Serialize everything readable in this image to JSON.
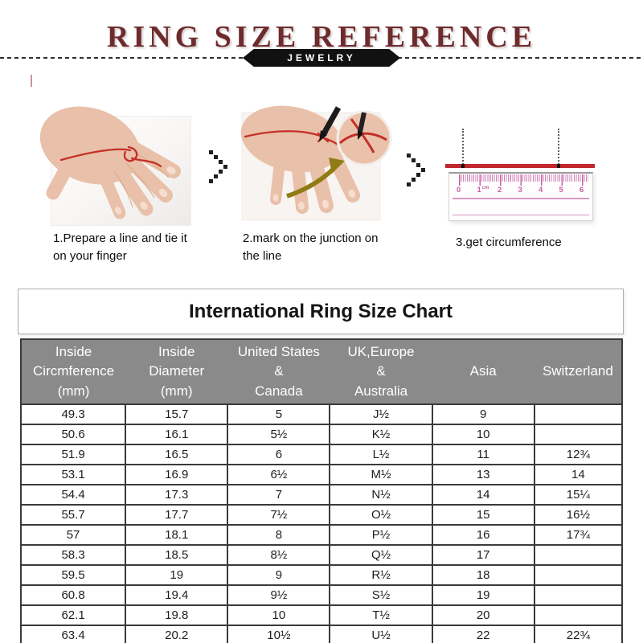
{
  "header": {
    "title": "RING SIZE REFERENCE",
    "badge": "JEWELRY"
  },
  "steps": [
    {
      "caption": "1.Prepare a line and tie it\non your finger"
    },
    {
      "caption": "2.mark on the junction on\nthe line"
    },
    {
      "caption": "3.get circumference"
    }
  ],
  "icons": {
    "step_separator": "dotted-chevron-right",
    "step1_image": "hand-with-red-string-photo",
    "step2_image": "hand-pen-marking-photo-with-magnifier",
    "step3_image": "ruler-measuring-string-photo"
  },
  "ruler": {
    "numbers": [
      "0",
      "1",
      "2",
      "3",
      "4",
      "5",
      "6"
    ],
    "unit": "cm"
  },
  "table": {
    "title": "International Ring Size Chart",
    "columns": [
      "Inside\nCircmference\n(mm)",
      "Inside\nDiameter\n(mm)",
      "United States\n&\nCanada",
      "UK,Europe\n&\nAustralia",
      "Asia",
      "Switzerland"
    ],
    "rows": [
      [
        "49.3",
        "15.7",
        "5",
        "J½",
        "9",
        ""
      ],
      [
        "50.6",
        "16.1",
        "5½",
        "K½",
        "10",
        ""
      ],
      [
        "51.9",
        "16.5",
        "6",
        "L½",
        "11",
        "12¾"
      ],
      [
        "53.1",
        "16.9",
        "6½",
        "M½",
        "13",
        "14"
      ],
      [
        "54.4",
        "17.3",
        "7",
        "N½",
        "14",
        "15¼"
      ],
      [
        "55.7",
        "17.7",
        "7½",
        "O½",
        "15",
        "16½"
      ],
      [
        "57",
        "18.1",
        "8",
        "P½",
        "16",
        "17¾"
      ],
      [
        "58.3",
        "18.5",
        "8½",
        "Q½",
        "17",
        ""
      ],
      [
        "59.5",
        "19",
        "9",
        "R½",
        "18",
        ""
      ],
      [
        "60.8",
        "19.4",
        "9½",
        "S½",
        "19",
        ""
      ],
      [
        "62.1",
        "19.8",
        "10",
        "T½",
        "20",
        ""
      ],
      [
        "63.4",
        "20.2",
        "10½",
        "U½",
        "22",
        "22¾"
      ]
    ]
  },
  "colors": {
    "title_maroon": "#6e2b2d",
    "badge_bg": "#111111",
    "badge_text": "#ffffff",
    "table_header_bg": "#8a8a8a",
    "table_header_text": "#ffffff",
    "string_red": "#c1272d",
    "ruler_pink": "#c75fa5"
  }
}
